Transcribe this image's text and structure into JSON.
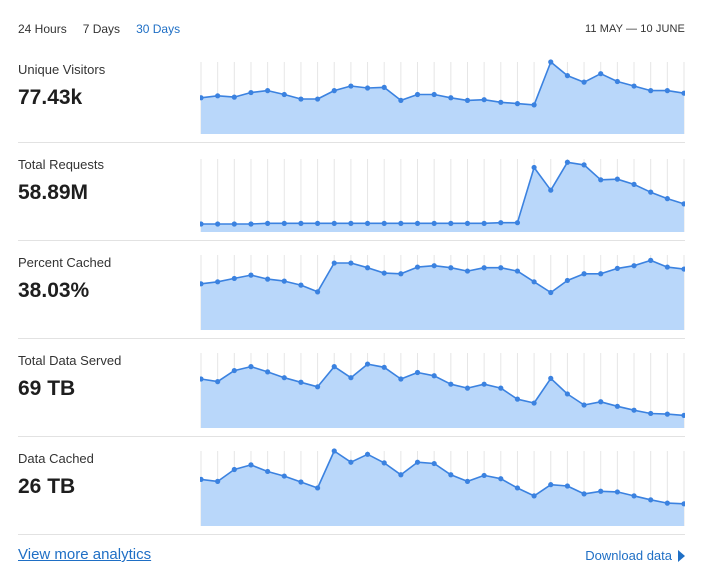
{
  "tabs": [
    {
      "label": "24 Hours",
      "active": false
    },
    {
      "label": "7 Days",
      "active": false
    },
    {
      "label": "30 Days",
      "active": true
    }
  ],
  "date_range": "11 MAY — 10 JUNE",
  "colors": {
    "accent": "#1f6fc5",
    "line": "#3b82e0",
    "fill": "#b9d7fa",
    "grid": "#e6e6e6"
  },
  "metrics": [
    {
      "label": "Unique Visitors",
      "value": "77.43k"
    },
    {
      "label": "Total Requests",
      "value": "58.89M"
    },
    {
      "label": "Percent Cached",
      "value": "38.03%"
    },
    {
      "label": "Total Data Served",
      "value": "69 TB"
    },
    {
      "label": "Data Cached",
      "value": "26 TB"
    }
  ],
  "chart_data": [
    {
      "type": "area",
      "series": [
        {
          "values": [
            0.45,
            0.48,
            0.46,
            0.53,
            0.56,
            0.5,
            0.43,
            0.43,
            0.56,
            0.63,
            0.6,
            0.61,
            0.41,
            0.5,
            0.5,
            0.45,
            0.41,
            0.42,
            0.38,
            0.36,
            0.34,
            1.0,
            0.79,
            0.69,
            0.82,
            0.7,
            0.63,
            0.56,
            0.56,
            0.52
          ]
        }
      ],
      "ylim": [
        0,
        1
      ]
    },
    {
      "type": "area",
      "series": [
        {
          "values": [
            0,
            0,
            0,
            0,
            0.01,
            0.01,
            0.01,
            0.01,
            0.01,
            0.01,
            0.01,
            0.01,
            0.01,
            0.01,
            0.01,
            0.01,
            0.01,
            0.01,
            0.02,
            0.02,
            0.87,
            0.52,
            0.95,
            0.91,
            0.68,
            0.69,
            0.61,
            0.49,
            0.39,
            0.31
          ]
        }
      ],
      "ylim": [
        0,
        1
      ]
    },
    {
      "type": "area",
      "series": [
        {
          "values": [
            0.57,
            0.6,
            0.65,
            0.7,
            0.64,
            0.61,
            0.55,
            0.45,
            0.88,
            0.88,
            0.81,
            0.73,
            0.72,
            0.82,
            0.84,
            0.81,
            0.76,
            0.81,
            0.81,
            0.76,
            0.6,
            0.44,
            0.62,
            0.72,
            0.72,
            0.8,
            0.84,
            0.92,
            0.82,
            0.79
          ]
        }
      ],
      "ylim": [
        0,
        1
      ]
    },
    {
      "type": "area",
      "series": [
        {
          "values": [
            0.6,
            0.56,
            0.73,
            0.79,
            0.71,
            0.62,
            0.55,
            0.48,
            0.79,
            0.62,
            0.83,
            0.78,
            0.6,
            0.7,
            0.65,
            0.52,
            0.46,
            0.52,
            0.46,
            0.29,
            0.23,
            0.61,
            0.37,
            0.2,
            0.25,
            0.18,
            0.12,
            0.07,
            0.06,
            0.04
          ]
        }
      ],
      "ylim": [
        0,
        1
      ]
    },
    {
      "type": "area",
      "series": [
        {
          "values": [
            0.57,
            0.54,
            0.72,
            0.79,
            0.69,
            0.62,
            0.53,
            0.44,
            1.0,
            0.83,
            0.95,
            0.82,
            0.64,
            0.83,
            0.81,
            0.64,
            0.54,
            0.63,
            0.58,
            0.44,
            0.32,
            0.49,
            0.47,
            0.35,
            0.39,
            0.38,
            0.32,
            0.26,
            0.21,
            0.2
          ]
        }
      ],
      "ylim": [
        0,
        1
      ]
    }
  ],
  "footer": {
    "left_link": "View more analytics",
    "right_link": "Download data",
    "right_icon": "play-triangle-icon"
  }
}
